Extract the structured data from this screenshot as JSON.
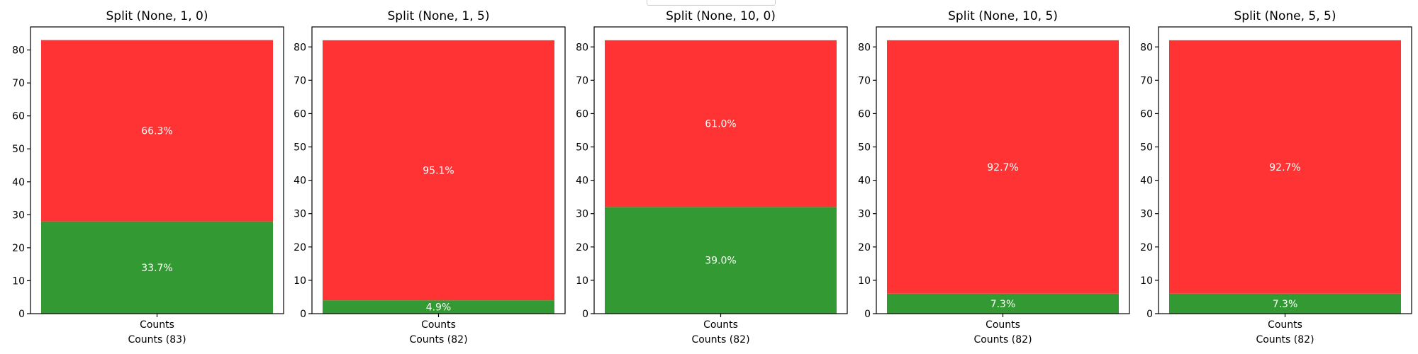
{
  "chart_data": [
    {
      "type": "bar",
      "stacked": true,
      "title": "Split (None, 1, 0)",
      "categories": [
        "Counts"
      ],
      "xlabel": "Counts (83)",
      "ylim": [
        0,
        87
      ],
      "yticks": [
        0,
        10,
        20,
        30,
        40,
        50,
        60,
        70,
        80
      ],
      "series": [
        {
          "values": [
            28
          ],
          "label_text": "33.7%",
          "color": "#339933"
        },
        {
          "values": [
            55
          ],
          "label_text": "66.3%",
          "color": "#ff3333"
        }
      ]
    },
    {
      "type": "bar",
      "stacked": true,
      "title": "Split (None, 1, 5)",
      "categories": [
        "Counts"
      ],
      "xlabel": "Counts (82)",
      "ylim": [
        0,
        86
      ],
      "yticks": [
        0,
        10,
        20,
        30,
        40,
        50,
        60,
        70,
        80
      ],
      "series": [
        {
          "values": [
            4
          ],
          "label_text": "4.9%",
          "color": "#339933"
        },
        {
          "values": [
            78
          ],
          "label_text": "95.1%",
          "color": "#ff3333"
        }
      ]
    },
    {
      "type": "bar",
      "stacked": true,
      "title": "Split (None, 10, 0)",
      "categories": [
        "Counts"
      ],
      "xlabel": "Counts (82)",
      "ylim": [
        0,
        86
      ],
      "yticks": [
        0,
        10,
        20,
        30,
        40,
        50,
        60,
        70,
        80
      ],
      "series": [
        {
          "values": [
            32
          ],
          "label_text": "39.0%",
          "color": "#339933"
        },
        {
          "values": [
            50
          ],
          "label_text": "61.0%",
          "color": "#ff3333"
        }
      ]
    },
    {
      "type": "bar",
      "stacked": true,
      "title": "Split (None, 10, 5)",
      "categories": [
        "Counts"
      ],
      "xlabel": "Counts (82)",
      "ylim": [
        0,
        86
      ],
      "yticks": [
        0,
        10,
        20,
        30,
        40,
        50,
        60,
        70,
        80
      ],
      "series": [
        {
          "values": [
            6
          ],
          "label_text": "7.3%",
          "color": "#339933"
        },
        {
          "values": [
            76
          ],
          "label_text": "92.7%",
          "color": "#ff3333"
        }
      ]
    },
    {
      "type": "bar",
      "stacked": true,
      "title": "Split (None, 5, 5)",
      "categories": [
        "Counts"
      ],
      "xlabel": "Counts (82)",
      "ylim": [
        0,
        86
      ],
      "yticks": [
        0,
        10,
        20,
        30,
        40,
        50,
        60,
        70,
        80
      ],
      "series": [
        {
          "values": [
            6
          ],
          "label_text": "7.3%",
          "color": "#339933"
        },
        {
          "values": [
            76
          ],
          "label_text": "92.7%",
          "color": "#ff3333"
        }
      ]
    }
  ],
  "colors": {
    "axis": "#000000",
    "background": "#ffffff",
    "label_text": "#ffffff"
  }
}
